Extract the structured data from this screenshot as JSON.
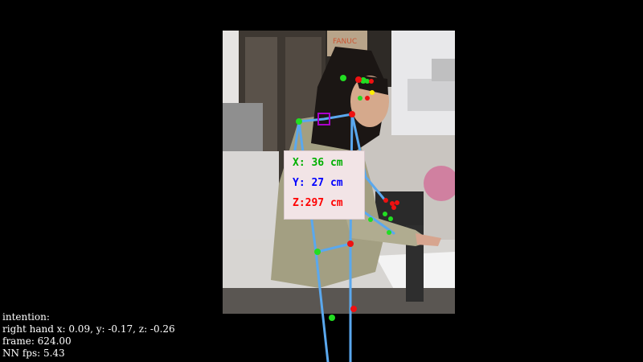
{
  "coordinates": {
    "x_label": "X: 36 cm",
    "y_label": "Y: 27 cm",
    "z_label": "Z:297 cm",
    "x_color": "#00b000",
    "y_color": "#0000ff",
    "z_color": "#ff0000"
  },
  "status": {
    "intention_label": "intention:",
    "right_hand_line": "right hand x: 0.09, y: -0.17, z: -0.26",
    "frame_line": "frame: 624.00",
    "fps_line": "NN fps: 5.43"
  },
  "colors": {
    "skeleton": "#5aa8ee",
    "keypoint_left": "#22dd22",
    "keypoint_right": "#ee1111",
    "keypoint_nose": "#ffee00",
    "target_marker": "#aa00cc"
  }
}
